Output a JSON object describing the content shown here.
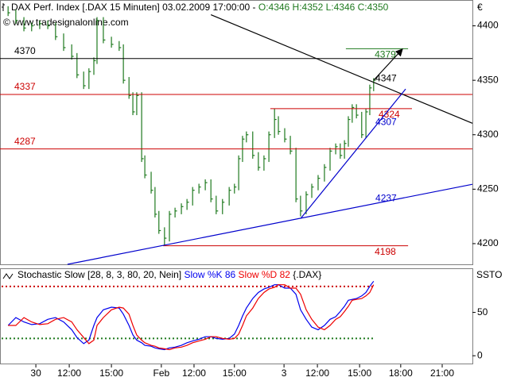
{
  "header": {
    "title": "DAX Perf. Index [.DAX  15 Minuten] 03.02.2009 17:00:00 - ",
    "quote": "O:4346 H:4352 L:4346 C:4350",
    "watermark": "© www.tradesignalonline.com"
  },
  "chart_data": [
    {
      "type": "ohlc",
      "axis_label": "€",
      "x": [
        2.3,
        4.5,
        6.8,
        9.0,
        11.3,
        13.6,
        15.8,
        18.1,
        20.4,
        21.9,
        23.8,
        25.3,
        26.7,
        27.6,
        29.4,
        31.7,
        33.9,
        35.1,
        36.7,
        37.8,
        38.9,
        40.3,
        41.2,
        43.0,
        44.1,
        45.2,
        46.8,
        48.2,
        49.8,
        51.6,
        53.2,
        54.8,
        56.6,
        58.4,
        60.0,
        61.5,
        63.3,
        65.2,
        66.7,
        67.9,
        69.0,
        70.1,
        71.9,
        73.5,
        75.1,
        76.5,
        78.1,
        79.2,
        81.0,
        82.6,
        84.2,
        85.5,
        87.1,
        88.7,
        90.5,
        92.3,
        93.9,
        95.5,
        96.8,
        98.0,
        99.1,
        100.2,
        101.4,
        102.9,
        104.1,
        105.2,
        106.3
      ],
      "high": [
        4418,
        4415,
        4408,
        4403,
        4405,
        4405,
        4403,
        4393,
        4383,
        4375,
        4358,
        4361,
        4371,
        4408,
        4408,
        4390,
        4386,
        4383,
        4353,
        4339,
        4339,
        4339,
        4281,
        4266,
        4252,
        4230,
        4215,
        4230,
        4233,
        4237,
        4241,
        4252,
        4255,
        4259,
        4259,
        4244,
        4241,
        4252,
        4255,
        4281,
        4299,
        4303,
        4303,
        4284,
        4281,
        4303,
        4324,
        4317,
        4306,
        4299,
        4288,
        4244,
        4248,
        4255,
        4263,
        4273,
        4288,
        4292,
        4292,
        4295,
        4317,
        4328,
        4328,
        4321,
        4324,
        4346,
        4352
      ],
      "low": [
        4409,
        4402,
        4395,
        4395,
        4397,
        4397,
        4387,
        4377,
        4369,
        4352,
        4342,
        4342,
        4355,
        4365,
        4384,
        4380,
        4377,
        4347,
        4333,
        4318,
        4318,
        4275,
        4260,
        4246,
        4224,
        4209,
        4198,
        4202,
        4224,
        4227,
        4231,
        4235,
        4246,
        4249,
        4238,
        4227,
        4227,
        4235,
        4246,
        4249,
        4275,
        4293,
        4278,
        4267,
        4267,
        4275,
        4297,
        4300,
        4293,
        4282,
        4238,
        4225,
        4227,
        4242,
        4249,
        4257,
        4267,
        4282,
        4278,
        4278,
        4289,
        4311,
        4315,
        4297,
        4297,
        4318,
        4340
      ],
      "close": [
        4412,
        4405,
        4398,
        4400,
        4402,
        4400,
        4390,
        4380,
        4372,
        4355,
        4345,
        4358,
        4368,
        4405,
        4387,
        4383,
        4380,
        4350,
        4336,
        4321,
        4336,
        4278,
        4263,
        4249,
        4227,
        4212,
        4205,
        4227,
        4230,
        4234,
        4238,
        4249,
        4252,
        4256,
        4241,
        4230,
        4238,
        4249,
        4252,
        4278,
        4296,
        4300,
        4281,
        4270,
        4278,
        4300,
        4314,
        4303,
        4296,
        4285,
        4241,
        4230,
        4245,
        4252,
        4260,
        4270,
        4285,
        4289,
        4281,
        4292,
        4314,
        4325,
        4318,
        4300,
        4321,
        4343,
        4350
      ],
      "color": "#1f7a1f",
      "xlim": [
        0,
        134.4
      ],
      "ylim": [
        4181,
        4423
      ],
      "yticks": [
        4200,
        4250,
        4300,
        4350,
        4400
      ],
      "levels": [
        {
          "value": 4370,
          "color": "#000000"
        },
        {
          "value": 4337,
          "color": "#cc0000"
        },
        {
          "value": 4287,
          "color": "#cc0000"
        },
        {
          "value": 4324,
          "color": "#cc0000",
          "x": [
            76.9,
            117.2
          ]
        },
        {
          "value": 4198,
          "color": "#cc0000",
          "x": [
            46.4,
            116.1
          ]
        },
        {
          "value": 4379,
          "color": "#1f7a1f",
          "x": [
            98.4,
            116.1
          ]
        }
      ],
      "trendlines": [
        {
          "x": [
            60.0,
            134.4
          ],
          "y": [
            4410.2,
            4310.5
          ],
          "color": "#000000"
        },
        {
          "x": [
            19.2,
            134.4
          ],
          "y": [
            4181,
            4254.5
          ],
          "color": "#0000cc"
        },
        {
          "x": [
            85.5,
            115.4
          ],
          "y": [
            4223,
            4342
          ],
          "color": "#0000cc"
        },
        {
          "x": [
            106.3,
            114.3
          ],
          "y": [
            4350,
            4378
          ],
          "color": "#000000",
          "arrow": true
        }
      ],
      "annotations": [
        {
          "x": 106.8,
          "value": 4347,
          "color": "#000000"
        },
        {
          "x": 106.8,
          "value": 4307,
          "color": "#0000cc"
        },
        {
          "x": 106.8,
          "value": 4237,
          "color": "#0000cc"
        }
      ]
    },
    {
      "type": "line",
      "title": "Stochastic Slow [28, 8, 3, 80, 20, Nein]",
      "suffix": "{.DAX}",
      "axis_label": "SSTO",
      "x": [
        2.3,
        4.5,
        6.8,
        9.0,
        11.3,
        13.6,
        15.8,
        18.1,
        20.4,
        21.9,
        23.8,
        25.3,
        26.7,
        27.6,
        29.4,
        31.7,
        33.9,
        35.1,
        36.7,
        37.8,
        38.9,
        40.3,
        41.2,
        43.0,
        44.1,
        45.2,
        46.8,
        48.2,
        49.8,
        51.6,
        53.2,
        54.8,
        56.6,
        58.4,
        60.0,
        61.5,
        63.3,
        65.2,
        66.7,
        67.9,
        69.0,
        70.1,
        71.9,
        73.5,
        75.1,
        76.5,
        78.1,
        79.2,
        81.0,
        82.6,
        84.2,
        85.5,
        87.1,
        88.7,
        90.5,
        92.3,
        93.9,
        95.5,
        96.8,
        98.0,
        99.1,
        100.2,
        101.4,
        102.9,
        104.1,
        105.2,
        106.3
      ],
      "series": [
        {
          "name": "Slow %K",
          "color": "#0000ee",
          "values": [
            35,
            44,
            39,
            36,
            37,
            42,
            44,
            39,
            30,
            21,
            14,
            18,
            35,
            44,
            53,
            56,
            55,
            48,
            35,
            24,
            18,
            15,
            12,
            11,
            9,
            8,
            7,
            9,
            10,
            12,
            15,
            17,
            19,
            22,
            22,
            20,
            19,
            20,
            25,
            35,
            46,
            55,
            66,
            73,
            77,
            79,
            82,
            82,
            78,
            78,
            71,
            53,
            42,
            33,
            30,
            35,
            42,
            45,
            51,
            57,
            64,
            65,
            66,
            69,
            73,
            80,
            86
          ]
        },
        {
          "name": "Slow %D",
          "color": "#ee0000",
          "values": [
            35,
            35,
            44,
            39,
            36,
            37,
            42,
            44,
            39,
            30,
            21,
            14,
            18,
            35,
            44,
            53,
            56,
            55,
            48,
            35,
            24,
            18,
            15,
            12,
            11,
            9,
            8,
            7,
            9,
            10,
            12,
            15,
            17,
            19,
            22,
            22,
            20,
            19,
            20,
            25,
            35,
            46,
            55,
            66,
            73,
            77,
            79,
            82,
            82,
            78,
            78,
            71,
            53,
            42,
            33,
            30,
            35,
            42,
            45,
            51,
            57,
            64,
            65,
            66,
            69,
            73,
            82
          ]
        }
      ],
      "xlim": [
        0,
        134.4
      ],
      "ylim": [
        -9,
        100
      ],
      "yticks": [
        0,
        50
      ],
      "levels": [
        {
          "value": 80,
          "color": "#cc0000"
        },
        {
          "value": 20,
          "color": "#1f7a1f"
        }
      ],
      "xticks": [
        {
          "value": 10.2,
          "label": "30"
        },
        {
          "value": 19.7,
          "label": "12:00"
        },
        {
          "value": 31.7,
          "label": "15:00"
        },
        {
          "value": 45.9,
          "label": "Feb"
        },
        {
          "value": 55.2,
          "label": "12:00"
        },
        {
          "value": 66.7,
          "label": "15:00"
        },
        {
          "value": 80.8,
          "label": "3"
        },
        {
          "value": 90.3,
          "label": "12:00"
        },
        {
          "value": 102.3,
          "label": "15:00"
        },
        {
          "value": 114.0,
          "label": "18:00"
        },
        {
          "value": 125.8,
          "label": "21:00"
        }
      ]
    }
  ]
}
